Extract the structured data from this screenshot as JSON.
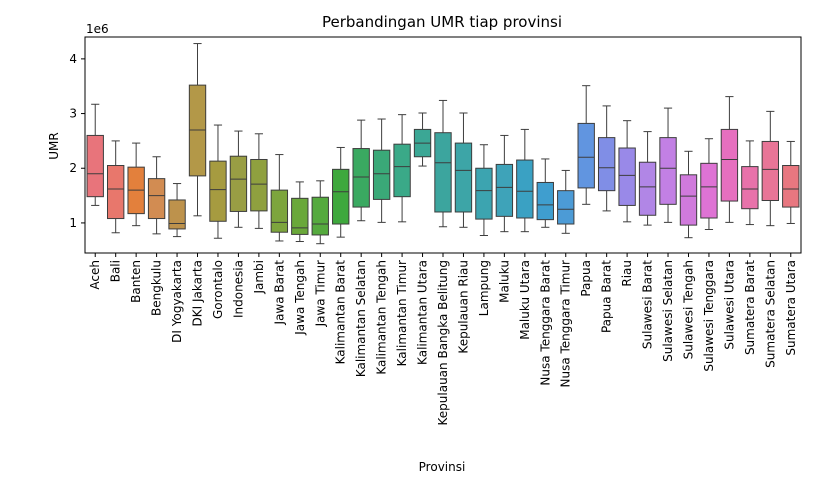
{
  "chart_data": {
    "type": "box",
    "title": "Perbandingan UMR tiap provinsi",
    "xlabel": "Provinsi",
    "ylabel": "UMR",
    "y_offset_label": "1e6",
    "ylim": [
      0.45,
      4.4
    ],
    "y_ticks": [
      1,
      2,
      3,
      4
    ],
    "y_tick_labels": [
      "1",
      "2",
      "3",
      "4"
    ],
    "grid": false,
    "legend": "none",
    "categories": [
      "Aceh",
      "Bali",
      "Banten",
      "Bengkulu",
      "DI Yogyakarta",
      "DKI Jakarta",
      "Gorontalo",
      "Indonesia",
      "Jambi",
      "Jawa Barat",
      "Jawa Tengah",
      "Jawa Timur",
      "Kalimantan Barat",
      "Kalimantan Selatan",
      "Kalimantan Tengah",
      "Kalimantan Timur",
      "Kalimantan Utara",
      "Kepulauan Bangka Belitung",
      "Kepulauan Riau",
      "Lampung",
      "Maluku",
      "Maluku Utara",
      "Nusa Tenggara Barat",
      "Nusa Tenggara Timur",
      "Papua",
      "Papua Barat",
      "Riau",
      "Sulawesi Barat",
      "Sulawesi Selatan",
      "Sulawesi Tengah",
      "Sulawesi Tenggara",
      "Sulawesi Utara",
      "Sumatera Barat",
      "Sumatera Selatan",
      "Sumatera Utara"
    ],
    "boxes": [
      {
        "whislo": 1.32,
        "q1": 1.48,
        "med": 1.9,
        "q3": 2.6,
        "whishi": 3.17
      },
      {
        "whislo": 0.82,
        "q1": 1.08,
        "med": 1.62,
        "q3": 2.05,
        "whishi": 2.5
      },
      {
        "whislo": 0.95,
        "q1": 1.17,
        "med": 1.6,
        "q3": 2.02,
        "whishi": 2.46
      },
      {
        "whislo": 0.8,
        "q1": 1.08,
        "med": 1.5,
        "q3": 1.81,
        "whishi": 2.21
      },
      {
        "whislo": 0.75,
        "q1": 0.89,
        "med": 0.99,
        "q3": 1.42,
        "whishi": 1.72
      },
      {
        "whislo": 1.13,
        "q1": 1.86,
        "med": 2.7,
        "q3": 3.52,
        "whishi": 4.28
      },
      {
        "whislo": 0.72,
        "q1": 1.03,
        "med": 1.61,
        "q3": 2.13,
        "whishi": 2.79
      },
      {
        "whislo": 0.92,
        "q1": 1.21,
        "med": 1.8,
        "q3": 2.22,
        "whishi": 2.68
      },
      {
        "whislo": 0.9,
        "q1": 1.22,
        "med": 1.71,
        "q3": 2.16,
        "whishi": 2.63
      },
      {
        "whislo": 0.67,
        "q1": 0.83,
        "med": 1.01,
        "q3": 1.6,
        "whishi": 2.25
      },
      {
        "whislo": 0.66,
        "q1": 0.79,
        "med": 0.91,
        "q3": 1.45,
        "whishi": 1.75
      },
      {
        "whislo": 0.62,
        "q1": 0.78,
        "med": 0.98,
        "q3": 1.47,
        "whishi": 1.77
      },
      {
        "whislo": 0.74,
        "q1": 0.98,
        "med": 1.57,
        "q3": 1.98,
        "whishi": 2.38
      },
      {
        "whislo": 1.04,
        "q1": 1.29,
        "med": 1.84,
        "q3": 2.36,
        "whishi": 2.88
      },
      {
        "whislo": 1.01,
        "q1": 1.43,
        "med": 1.9,
        "q3": 2.33,
        "whishi": 2.9
      },
      {
        "whislo": 1.02,
        "q1": 1.48,
        "med": 2.03,
        "q3": 2.44,
        "whishi": 2.98
      },
      {
        "whislo": 2.04,
        "q1": 2.21,
        "med": 2.46,
        "q3": 2.71,
        "whishi": 3.01
      },
      {
        "whislo": 0.93,
        "q1": 1.2,
        "med": 2.1,
        "q3": 2.65,
        "whishi": 3.24
      },
      {
        "whislo": 0.92,
        "q1": 1.2,
        "med": 1.96,
        "q3": 2.46,
        "whishi": 3.01
      },
      {
        "whislo": 0.77,
        "q1": 1.07,
        "med": 1.59,
        "q3": 2.0,
        "whishi": 2.43
      },
      {
        "whislo": 0.84,
        "q1": 1.12,
        "med": 1.65,
        "q3": 2.07,
        "whishi": 2.6
      },
      {
        "whislo": 0.84,
        "q1": 1.09,
        "med": 1.58,
        "q3": 2.15,
        "whishi": 2.71
      },
      {
        "whislo": 0.92,
        "q1": 1.06,
        "med": 1.33,
        "q3": 1.74,
        "whishi": 2.17
      },
      {
        "whislo": 0.81,
        "q1": 0.98,
        "med": 1.25,
        "q3": 1.59,
        "whishi": 1.96
      },
      {
        "whislo": 1.34,
        "q1": 1.64,
        "med": 2.2,
        "q3": 2.82,
        "whishi": 3.51
      },
      {
        "whislo": 1.22,
        "q1": 1.59,
        "med": 2.01,
        "q3": 2.56,
        "whishi": 3.14
      },
      {
        "whislo": 1.02,
        "q1": 1.32,
        "med": 1.87,
        "q3": 2.37,
        "whishi": 2.87
      },
      {
        "whislo": 0.96,
        "q1": 1.14,
        "med": 1.66,
        "q3": 2.11,
        "whishi": 2.67
      },
      {
        "whislo": 1.01,
        "q1": 1.34,
        "med": 2.0,
        "q3": 2.56,
        "whishi": 3.1
      },
      {
        "whislo": 0.73,
        "q1": 0.96,
        "med": 1.49,
        "q3": 1.88,
        "whishi": 2.31
      },
      {
        "whislo": 0.88,
        "q1": 1.09,
        "med": 1.66,
        "q3": 2.09,
        "whishi": 2.54
      },
      {
        "whislo": 1.01,
        "q1": 1.4,
        "med": 2.16,
        "q3": 2.71,
        "whishi": 3.31
      },
      {
        "whislo": 0.97,
        "q1": 1.26,
        "med": 1.62,
        "q3": 2.03,
        "whishi": 2.5
      },
      {
        "whislo": 0.95,
        "q1": 1.41,
        "med": 1.98,
        "q3": 2.49,
        "whishi": 3.04
      },
      {
        "whislo": 0.99,
        "q1": 1.29,
        "med": 1.62,
        "q3": 2.05,
        "whishi": 2.49
      }
    ],
    "colors": [
      "#e8747b",
      "#e8776c",
      "#e3803c",
      "#d28c52",
      "#bd924c",
      "#b39848",
      "#a69b40",
      "#999e44",
      "#8fa03f",
      "#7da53d",
      "#6aa83a",
      "#55aa3e",
      "#3ea83d",
      "#3aa961",
      "#3aa978",
      "#3aa988",
      "#3ba795",
      "#3ca59e",
      "#3da5a7",
      "#3ca4b0",
      "#3ea3b9",
      "#3aa1c3",
      "#3f9ecf",
      "#4c9bd6",
      "#6195e0",
      "#808ee6",
      "#9989e8",
      "#b186e6",
      "#c280e4",
      "#d07adc",
      "#de73d4",
      "#e66fbf",
      "#e872aa",
      "#e87597",
      "#e87780"
    ]
  }
}
